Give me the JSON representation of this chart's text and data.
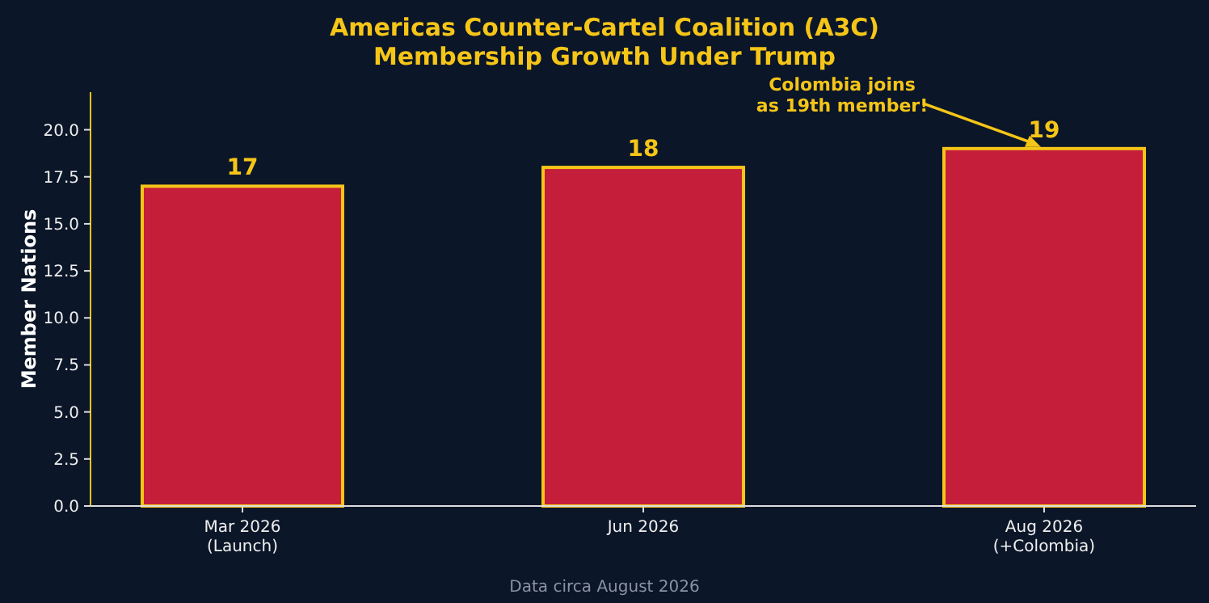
{
  "chart_data": {
    "type": "bar",
    "title": "Americas Counter-Cartel Coalition (A3C)\nMembership Growth Under Trump",
    "ylabel": "Member Nations",
    "categories": [
      "Mar 2026\n(Launch)",
      "Jun 2026",
      "Aug 2026\n(+Colombia)"
    ],
    "series": [
      {
        "color": "#c41e3a",
        "values": [
          17,
          18,
          19
        ]
      }
    ],
    "data_labels": true,
    "ylim": [
      0,
      22
    ],
    "yticks": [
      {
        "value": 0,
        "label": "0.0"
      },
      {
        "value": 2.5,
        "label": "2.5"
      },
      {
        "value": 5,
        "label": "5.0"
      },
      {
        "value": 7.5,
        "label": "7.5"
      },
      {
        "value": 10,
        "label": "10.0"
      },
      {
        "value": 12.5,
        "label": "12.5"
      },
      {
        "value": 15,
        "label": "15.0"
      },
      {
        "value": 17.5,
        "label": "17.5"
      },
      {
        "value": 20,
        "label": "20.0"
      }
    ],
    "grid": false,
    "annotations": [
      {
        "text": "Colombia joins\nas 19th member!",
        "x": "Aug 2026\n(+Colombia)",
        "y": 19
      },
      "Data circa August 2026"
    ]
  }
}
